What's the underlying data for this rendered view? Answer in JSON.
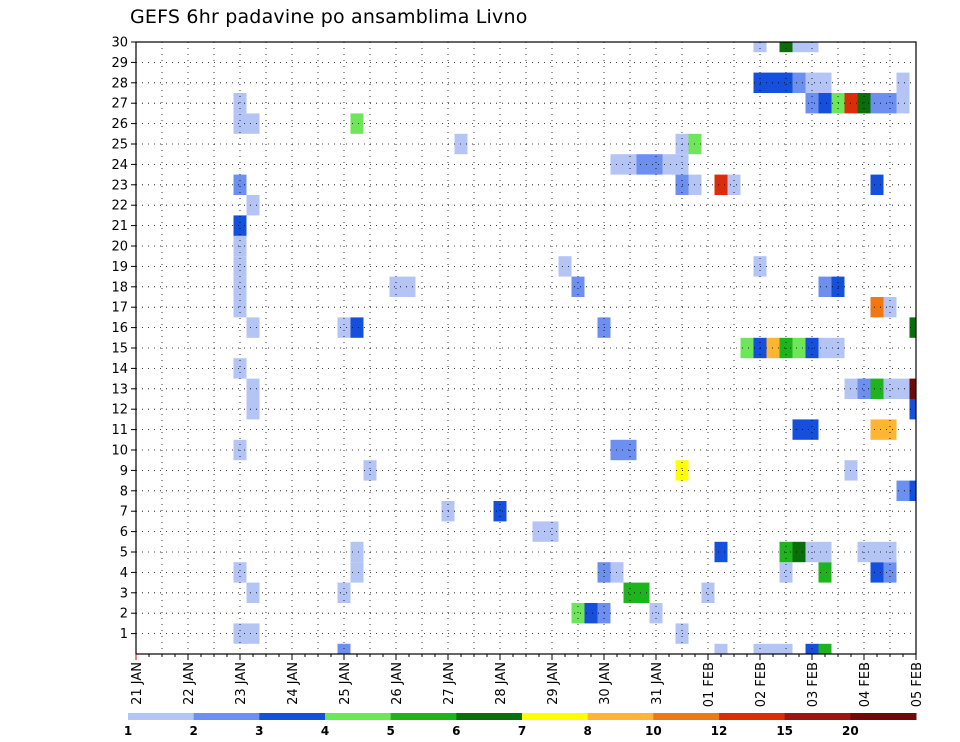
{
  "chart_data": {
    "type": "heatmap",
    "title": "GEFS 6hr padavine po ansamblima Livno",
    "xlabel": "",
    "ylabel": "",
    "x_tick_labels": [
      "21 JAN",
      "22 JAN",
      "23 JAN",
      "24 JAN",
      "25 JAN",
      "26 JAN",
      "27 JAN",
      "28 JAN",
      "29 JAN",
      "30 JAN",
      "31 JAN",
      "01 FEB",
      "02 FEB",
      "03 FEB",
      "04 FEB",
      "05 FEB"
    ],
    "y_tick_labels": [
      "1",
      "2",
      "3",
      "4",
      "5",
      "6",
      "7",
      "8",
      "9",
      "10",
      "11",
      "12",
      "13",
      "14",
      "15",
      "16",
      "17",
      "18",
      "19",
      "20",
      "21",
      "22",
      "23",
      "24",
      "25",
      "26",
      "27",
      "28",
      "29",
      "30"
    ],
    "xlim": [
      0,
      60
    ],
    "ylim": [
      0,
      30
    ],
    "grid": true,
    "legend": {
      "placement": "bottom",
      "labels": [
        "1",
        "2",
        "3",
        "4",
        "5",
        "6",
        "7",
        "8",
        "10",
        "12",
        "15",
        "20"
      ],
      "colors": [
        "#b4c5f5",
        "#6c8ff0",
        "#1450dc",
        "#6ee65a",
        "#1eb41e",
        "#0a6e0a",
        "#ffff00",
        "#ffb432",
        "#f07814",
        "#dc2d0a",
        "#a01414",
        "#6e0a0a"
      ]
    },
    "cells": [
      {
        "t": 8,
        "m": 1,
        "c": 0
      },
      {
        "t": 8,
        "m": 4,
        "c": 0
      },
      {
        "t": 8,
        "m": 10,
        "c": 0
      },
      {
        "t": 8,
        "m": 14,
        "c": 0
      },
      {
        "t": 8,
        "m": 17,
        "c": 0
      },
      {
        "t": 8,
        "m": 18,
        "c": 0
      },
      {
        "t": 8,
        "m": 19,
        "c": 0
      },
      {
        "t": 8,
        "m": 20,
        "c": 0
      },
      {
        "t": 8,
        "m": 21,
        "c": 2
      },
      {
        "t": 8,
        "m": 23,
        "c": 1
      },
      {
        "t": 8,
        "m": 26,
        "c": 0
      },
      {
        "t": 8,
        "m": 27,
        "c": 0
      },
      {
        "t": 9,
        "m": 1,
        "c": 0
      },
      {
        "t": 9,
        "m": 3,
        "c": 0
      },
      {
        "t": 9,
        "m": 12,
        "c": 0
      },
      {
        "t": 9,
        "m": 13,
        "c": 0
      },
      {
        "t": 9,
        "m": 16,
        "c": 0
      },
      {
        "t": 9,
        "m": 22,
        "c": 0
      },
      {
        "t": 9,
        "m": 26,
        "c": 0
      },
      {
        "t": 16,
        "m": 0,
        "c": 1
      },
      {
        "t": 16,
        "m": 3,
        "c": 0
      },
      {
        "t": 16,
        "m": 16,
        "c": 0
      },
      {
        "t": 17,
        "m": 4,
        "c": 0
      },
      {
        "t": 17,
        "m": 5,
        "c": 0
      },
      {
        "t": 17,
        "m": 16,
        "c": 2
      },
      {
        "t": 17,
        "m": 26,
        "c": 3
      },
      {
        "t": 18,
        "m": 9,
        "c": 0
      },
      {
        "t": 20,
        "m": 18,
        "c": 0
      },
      {
        "t": 21,
        "m": 18,
        "c": 0
      },
      {
        "t": 24,
        "m": 7,
        "c": 0
      },
      {
        "t": 25,
        "m": 25,
        "c": 0
      },
      {
        "t": 28,
        "m": 7,
        "c": 2
      },
      {
        "t": 31,
        "m": 6,
        "c": 0
      },
      {
        "t": 32,
        "m": 6,
        "c": 0
      },
      {
        "t": 33,
        "m": 19,
        "c": 0
      },
      {
        "t": 34,
        "m": 2,
        "c": 3
      },
      {
        "t": 34,
        "m": 18,
        "c": 1
      },
      {
        "t": 35,
        "m": 2,
        "c": 2
      },
      {
        "t": 36,
        "m": 2,
        "c": 1
      },
      {
        "t": 36,
        "m": 4,
        "c": 1
      },
      {
        "t": 36,
        "m": 16,
        "c": 1
      },
      {
        "t": 37,
        "m": 4,
        "c": 0
      },
      {
        "t": 37,
        "m": 10,
        "c": 1
      },
      {
        "t": 37,
        "m": 24,
        "c": 0
      },
      {
        "t": 38,
        "m": 3,
        "c": 4
      },
      {
        "t": 38,
        "m": 10,
        "c": 1
      },
      {
        "t": 38,
        "m": 24,
        "c": 0
      },
      {
        "t": 39,
        "m": 3,
        "c": 4
      },
      {
        "t": 39,
        "m": 24,
        "c": 1
      },
      {
        "t": 40,
        "m": 2,
        "c": 0
      },
      {
        "t": 40,
        "m": 24,
        "c": 1
      },
      {
        "t": 41,
        "m": 24,
        "c": 0
      },
      {
        "t": 42,
        "m": 1,
        "c": 0
      },
      {
        "t": 42,
        "m": 9,
        "c": 6
      },
      {
        "t": 42,
        "m": 23,
        "c": 1
      },
      {
        "t": 42,
        "m": 24,
        "c": 0
      },
      {
        "t": 42,
        "m": 25,
        "c": 0
      },
      {
        "t": 43,
        "m": 23,
        "c": 0
      },
      {
        "t": 43,
        "m": 25,
        "c": 3
      },
      {
        "t": 44,
        "m": 3,
        "c": 0
      },
      {
        "t": 45,
        "m": 0,
        "c": 0
      },
      {
        "t": 45,
        "m": 5,
        "c": 2
      },
      {
        "t": 45,
        "m": 23,
        "c": 9
      },
      {
        "t": 46,
        "m": 23,
        "c": 0
      },
      {
        "t": 47,
        "m": 15,
        "c": 3
      },
      {
        "t": 48,
        "m": 0,
        "c": 0
      },
      {
        "t": 48,
        "m": 15,
        "c": 2
      },
      {
        "t": 48,
        "m": 19,
        "c": 0
      },
      {
        "t": 48,
        "m": 28,
        "c": 2
      },
      {
        "t": 48,
        "m": 30,
        "c": 0
      },
      {
        "t": 49,
        "m": 0,
        "c": 0
      },
      {
        "t": 49,
        "m": 15,
        "c": 7
      },
      {
        "t": 49,
        "m": 28,
        "c": 2
      },
      {
        "t": 50,
        "m": 0,
        "c": 0
      },
      {
        "t": 50,
        "m": 4,
        "c": 0
      },
      {
        "t": 50,
        "m": 5,
        "c": 4
      },
      {
        "t": 50,
        "m": 15,
        "c": 4
      },
      {
        "t": 50,
        "m": 28,
        "c": 2
      },
      {
        "t": 50,
        "m": 30,
        "c": 5
      },
      {
        "t": 51,
        "m": 5,
        "c": 5
      },
      {
        "t": 51,
        "m": 11,
        "c": 2
      },
      {
        "t": 51,
        "m": 15,
        "c": 3
      },
      {
        "t": 51,
        "m": 28,
        "c": 1
      },
      {
        "t": 51,
        "m": 30,
        "c": 0
      },
      {
        "t": 52,
        "m": 0,
        "c": 2
      },
      {
        "t": 52,
        "m": 5,
        "c": 0
      },
      {
        "t": 52,
        "m": 11,
        "c": 2
      },
      {
        "t": 52,
        "m": 15,
        "c": 2
      },
      {
        "t": 52,
        "m": 27,
        "c": 1
      },
      {
        "t": 52,
        "m": 28,
        "c": 0
      },
      {
        "t": 52,
        "m": 30,
        "c": 0
      },
      {
        "t": 53,
        "m": 0,
        "c": 4
      },
      {
        "t": 53,
        "m": 4,
        "c": 4
      },
      {
        "t": 53,
        "m": 5,
        "c": 0
      },
      {
        "t": 53,
        "m": 15,
        "c": 0
      },
      {
        "t": 53,
        "m": 18,
        "c": 1
      },
      {
        "t": 53,
        "m": 27,
        "c": 2
      },
      {
        "t": 53,
        "m": 28,
        "c": 0
      },
      {
        "t": 54,
        "m": 18,
        "c": 2
      },
      {
        "t": 54,
        "m": 15,
        "c": 0
      },
      {
        "t": 54,
        "m": 27,
        "c": 3
      },
      {
        "t": 55,
        "m": 9,
        "c": 0
      },
      {
        "t": 55,
        "m": 13,
        "c": 0
      },
      {
        "t": 55,
        "m": 27,
        "c": 9
      },
      {
        "t": 56,
        "m": 5,
        "c": 0
      },
      {
        "t": 56,
        "m": 13,
        "c": 1
      },
      {
        "t": 56,
        "m": 27,
        "c": 5
      },
      {
        "t": 57,
        "m": 4,
        "c": 2
      },
      {
        "t": 57,
        "m": 5,
        "c": 0
      },
      {
        "t": 57,
        "m": 11,
        "c": 7
      },
      {
        "t": 57,
        "m": 13,
        "c": 4
      },
      {
        "t": 57,
        "m": 17,
        "c": 8
      },
      {
        "t": 57,
        "m": 23,
        "c": 2
      },
      {
        "t": 57,
        "m": 27,
        "c": 1
      },
      {
        "t": 58,
        "m": 4,
        "c": 1
      },
      {
        "t": 58,
        "m": 5,
        "c": 0
      },
      {
        "t": 58,
        "m": 11,
        "c": 7
      },
      {
        "t": 58,
        "m": 13,
        "c": 0
      },
      {
        "t": 58,
        "m": 17,
        "c": 0
      },
      {
        "t": 58,
        "m": 27,
        "c": 1
      },
      {
        "t": 59,
        "m": 8,
        "c": 1
      },
      {
        "t": 59,
        "m": 13,
        "c": 0
      },
      {
        "t": 59,
        "m": 27,
        "c": 0
      },
      {
        "t": 59,
        "m": 28,
        "c": 0
      },
      {
        "t": 60,
        "m": 8,
        "c": 2
      },
      {
        "t": 60,
        "m": 16,
        "c": 5
      },
      {
        "t": 60,
        "m": 13,
        "c": 11
      },
      {
        "t": 60,
        "m": 12,
        "c": 2
      }
    ]
  }
}
